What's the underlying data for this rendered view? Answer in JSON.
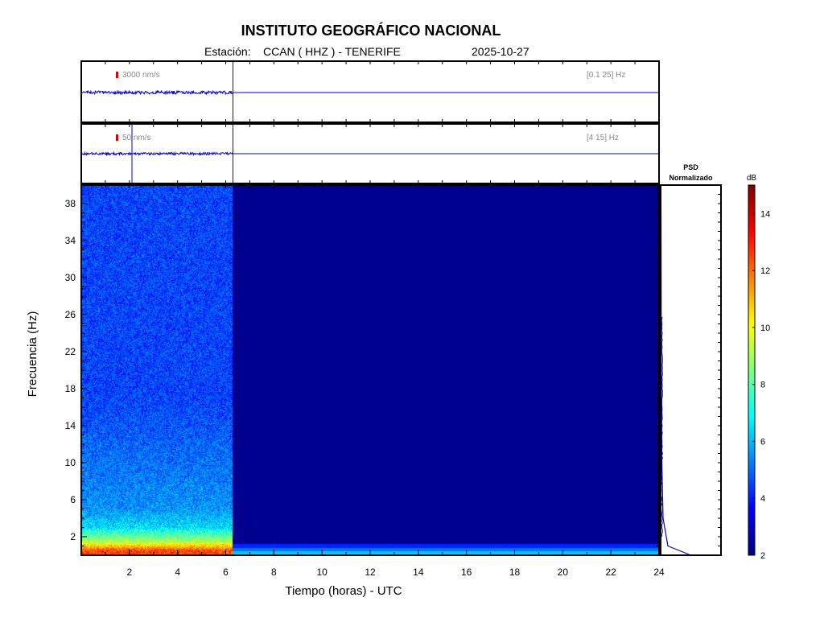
{
  "header": {
    "title": "INSTITUTO GEOGRÁFICO NACIONAL",
    "station_prefix": "Estación:",
    "station": "CCAN ( HHZ ) - TENERIFE",
    "date": "2025-10-27"
  },
  "colors": {
    "frame": "#000000",
    "trace": "#0000c8",
    "scale_bar": "#dd0000",
    "spectrogram_background": "#00008f",
    "panel_label": "#8a8a8a"
  },
  "chart_data": [
    {
      "type": "line",
      "panel": "waveform-broadband",
      "scale_label": "3000 nm/s",
      "band_label": "[0.1 25] Hz",
      "x": [
        0,
        6.3,
        6.3,
        24
      ],
      "note": "trace active with small noise until ~6.3 h, flat line afterwards",
      "xlim": [
        0,
        24
      ]
    },
    {
      "type": "line",
      "panel": "waveform-filtered",
      "scale_label": "50 nm/s",
      "band_label": "[4 15] Hz",
      "x": [
        0,
        6.3,
        6.3,
        24
      ],
      "xlim": [
        0,
        24
      ]
    },
    {
      "type": "heatmap",
      "panel": "spectrogram",
      "xlabel": "Tiempo (horas) - UTC",
      "ylabel": "Frecuencia  (Hz)",
      "xlim": [
        0,
        24
      ],
      "ylim": [
        0,
        40
      ],
      "xticks": [
        2,
        4,
        6,
        8,
        10,
        12,
        14,
        16,
        18,
        20,
        22,
        24
      ],
      "yticks": [
        2,
        6,
        10,
        14,
        18,
        22,
        26,
        30,
        34,
        38
      ],
      "data_end_hour": 6.3,
      "noise_level_db": 4.5,
      "low_frequency_db": [
        {
          "hz": 0.5,
          "db": 12.5
        },
        {
          "hz": 1.5,
          "db": 9
        },
        {
          "hz": 3,
          "db": 6.5
        },
        {
          "hz": 5,
          "db": 5.5
        }
      ]
    },
    {
      "type": "line",
      "panel": "psd",
      "title": "PSD\nNormalizado",
      "title_line1": "PSD",
      "title_line2": "Normalizado",
      "xlim": [
        0,
        1
      ],
      "ylim": [
        0,
        40
      ],
      "points": [
        {
          "hz": 0,
          "value": 0.5
        },
        {
          "hz": 1,
          "value": 0.12
        },
        {
          "hz": 4,
          "value": 0.04
        },
        {
          "hz": 10,
          "value": 0.02
        },
        {
          "hz": 20,
          "value": 0.01
        },
        {
          "hz": 40,
          "value": 0.005
        }
      ]
    },
    {
      "type": "colorbar",
      "panel": "colorbar",
      "label": "dB",
      "range": [
        2,
        15
      ],
      "ticks": [
        2,
        4,
        6,
        8,
        10,
        12,
        14
      ]
    }
  ]
}
